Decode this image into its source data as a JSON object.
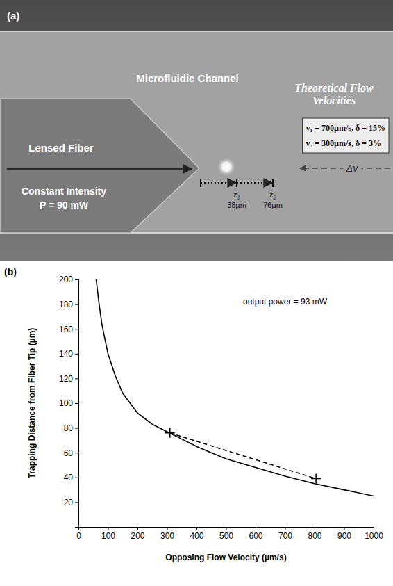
{
  "panel_a": {
    "label": "(a)",
    "channel_label": "Microfluidic Channel",
    "flow_heading": "Theoretical Flow Velocities",
    "flow_lines": [
      "v₁ = 700µm/s, δ = 15%",
      "v₂ = 300µm/s, δ = 3%"
    ],
    "fiber_label": "Lensed Fiber",
    "intensity_lines": [
      "Constant Intensity",
      "P = 90 mW"
    ],
    "flow_symbol": "Δv",
    "distances": [
      {
        "name": "z₁",
        "label": "38µm"
      },
      {
        "name": "z₂",
        "label": "76µm"
      }
    ]
  },
  "panel_b": {
    "label": "(b)"
  },
  "chart_data": {
    "type": "line",
    "x_label": "Opposing Flow Velocity (µm/s)",
    "y_label": "Trapping Distance from Fiber Tip (µm)",
    "annotations": [
      "output power = 93 mW"
    ],
    "xlim": [
      0,
      1000
    ],
    "xticks": [
      0,
      100,
      200,
      300,
      400,
      500,
      600,
      700,
      800,
      900,
      1000
    ],
    "ylim": [
      0,
      200
    ],
    "yticks": [
      20,
      40,
      60,
      80,
      100,
      120,
      140,
      160,
      180,
      200
    ],
    "grid": false,
    "series": [
      {
        "x": [
          60,
          70,
          80,
          100,
          125,
          150,
          200,
          250,
          300,
          350,
          400,
          450,
          500,
          600,
          700,
          800,
          900,
          1000
        ],
        "values": [
          200,
          180,
          163,
          140,
          122,
          108,
          92,
          83,
          77,
          71,
          65,
          60,
          55,
          48,
          41,
          35,
          30,
          25
        ],
        "color": "#000000",
        "line_style": "solid",
        "marker": "none"
      },
      {
        "x": [
          310,
          805
        ],
        "values": [
          76,
          39
        ],
        "color": "#000000",
        "line_style": "dashed",
        "marker": "plus"
      }
    ]
  }
}
